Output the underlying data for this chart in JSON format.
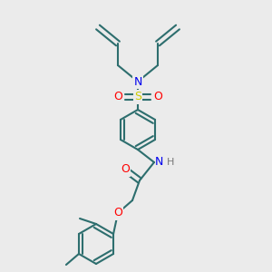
{
  "bg_color": "#ebebeb",
  "atom_colors": {
    "N": "#0000ee",
    "O": "#ff0000",
    "S": "#cccc00",
    "C": "#2d6e6e",
    "H": "#777777"
  },
  "bond_color": "#2d6e6e",
  "figsize": [
    3.0,
    3.0
  ],
  "dpi": 100
}
